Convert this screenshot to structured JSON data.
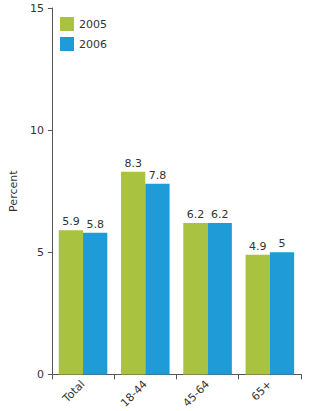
{
  "chart_data": {
    "type": "bar",
    "categories": [
      "Total",
      "18-44",
      "45-64",
      "65+"
    ],
    "series": [
      {
        "name": "2005",
        "color": "#a9c23f",
        "values": [
          5.9,
          8.3,
          6.2,
          4.9
        ]
      },
      {
        "name": "2006",
        "color": "#1f9bd7",
        "values": [
          5.8,
          7.8,
          6.2,
          5
        ]
      }
    ],
    "y_label": "Percent",
    "ylim": [
      0,
      15
    ],
    "yticks": [
      0,
      5,
      10,
      15
    ],
    "grid": false,
    "legend": "upper left",
    "data_labels": true
  }
}
